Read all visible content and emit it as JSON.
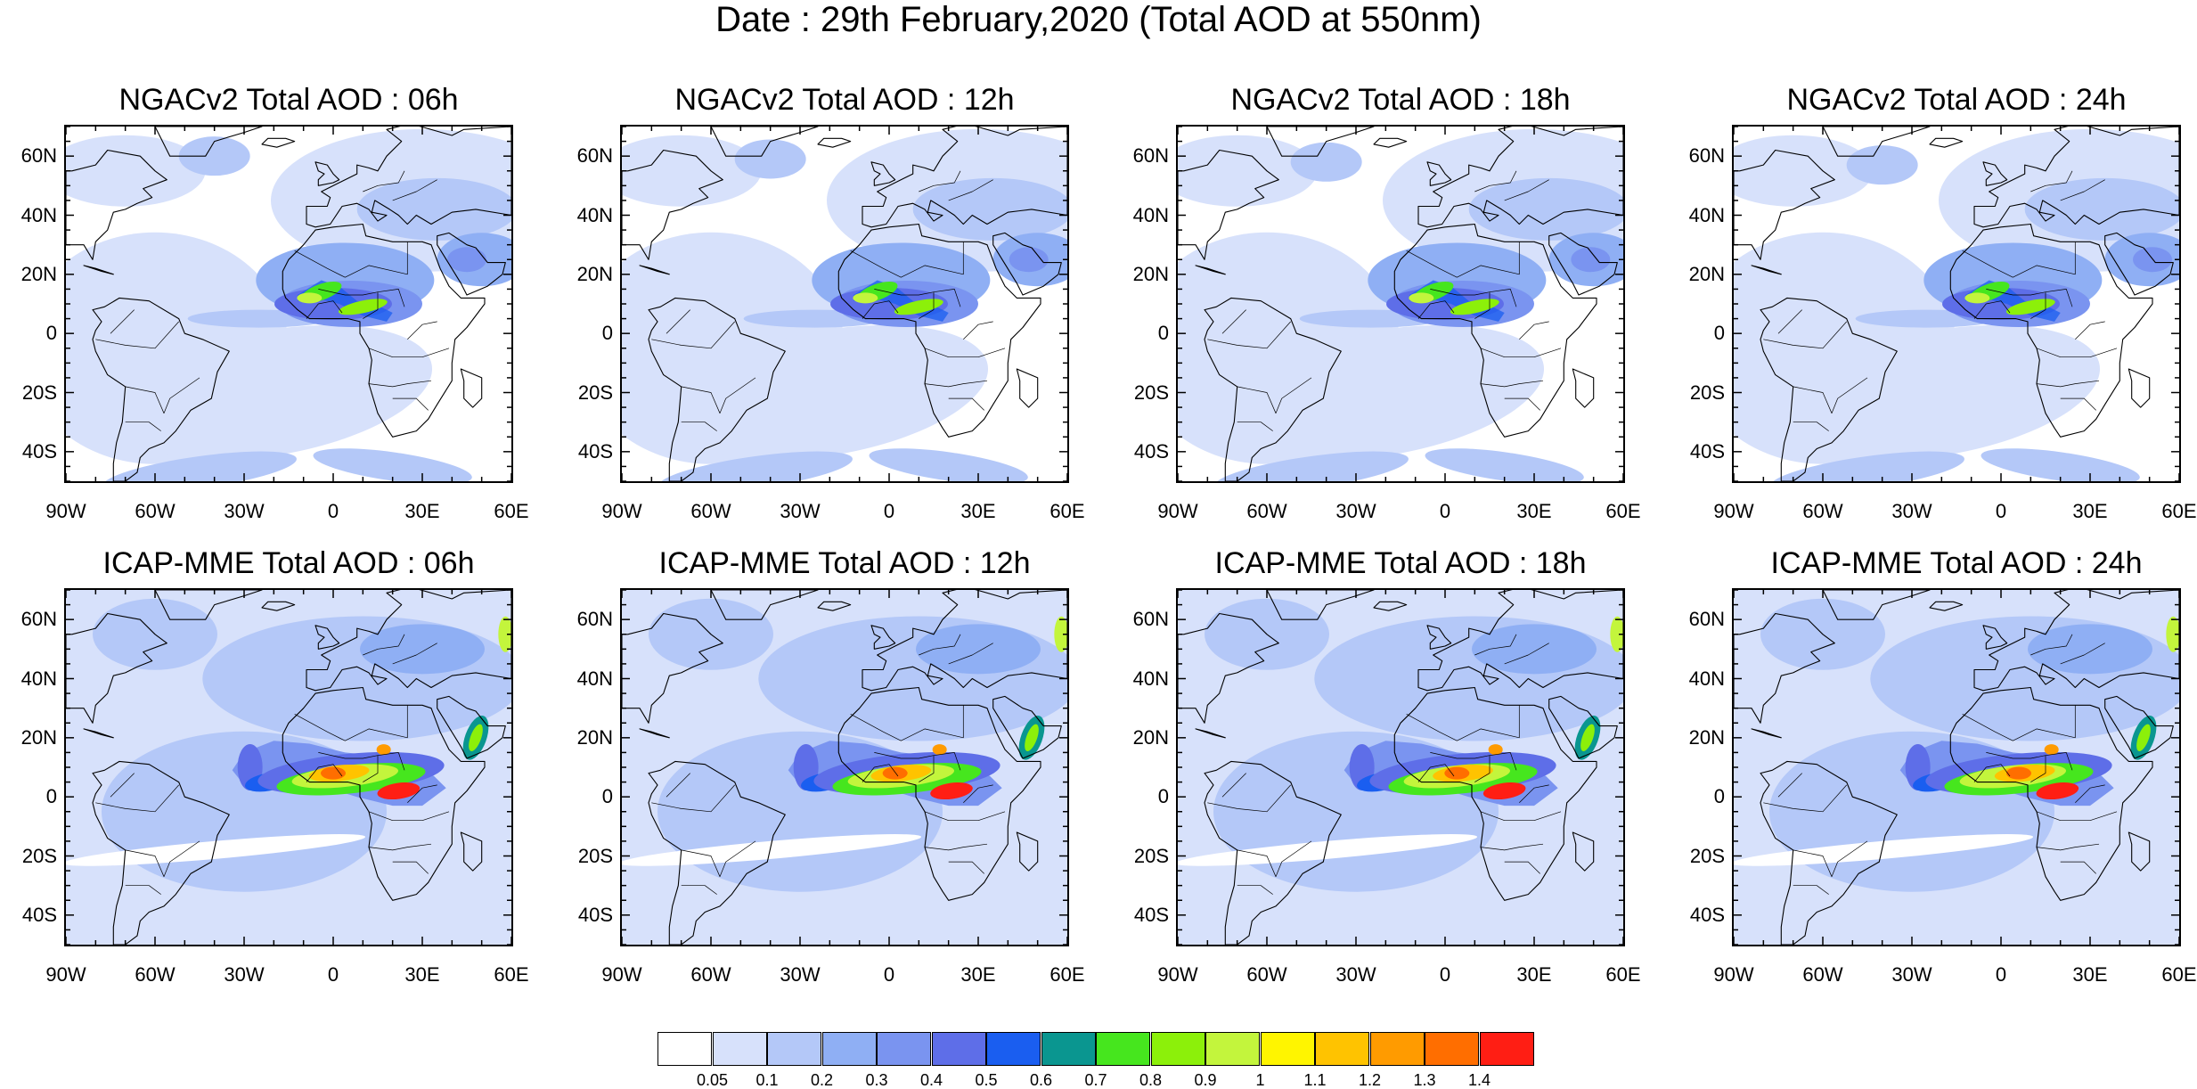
{
  "title": "Date : 29th February,2020 (Total AOD at 550nm)",
  "panels": [
    {
      "title": "NGACv2 Total AOD : 06h",
      "model": "ngac",
      "hour": "06h"
    },
    {
      "title": "NGACv2 Total AOD : 12h",
      "model": "ngac",
      "hour": "12h"
    },
    {
      "title": "NGACv2 Total AOD : 18h",
      "model": "ngac",
      "hour": "18h"
    },
    {
      "title": "NGACv2 Total AOD : 24h",
      "model": "ngac",
      "hour": "24h"
    },
    {
      "title": "ICAP-MME Total AOD : 06h",
      "model": "icap",
      "hour": "06h"
    },
    {
      "title": "ICAP-MME Total AOD : 12h",
      "model": "icap",
      "hour": "12h"
    },
    {
      "title": "ICAP-MME Total AOD : 18h",
      "model": "icap",
      "hour": "18h"
    },
    {
      "title": "ICAP-MME Total AOD : 24h",
      "model": "icap",
      "hour": "24h"
    }
  ],
  "axes": {
    "lat_labels": [
      "60N",
      "40N",
      "20N",
      "0",
      "20S",
      "40S"
    ],
    "lat_values": [
      60,
      40,
      20,
      0,
      -20,
      -40
    ],
    "lon_labels": [
      "90W",
      "60W",
      "30W",
      "0",
      "30E",
      "60E"
    ],
    "lon_values": [
      -90,
      -60,
      -30,
      0,
      30,
      60
    ],
    "lat_range": [
      -50,
      70
    ],
    "lon_range": [
      -90,
      60
    ]
  },
  "colorbar": {
    "labels": [
      "0.05",
      "0.1",
      "0.2",
      "0.3",
      "0.4",
      "0.5",
      "0.6",
      "0.7",
      "0.8",
      "0.9",
      "1",
      "1.1",
      "1.2",
      "1.3",
      "1.4"
    ],
    "colors": [
      "#ffffff",
      "#d7e1fb",
      "#b4c8f8",
      "#8faff4",
      "#7a94f0",
      "#5e6ee8",
      "#1a5ef0",
      "#0a9690",
      "#46e61e",
      "#8cf00a",
      "#c3f53c",
      "#fff500",
      "#ffc300",
      "#ff9b00",
      "#ff6e00",
      "#ff1e14"
    ]
  }
}
